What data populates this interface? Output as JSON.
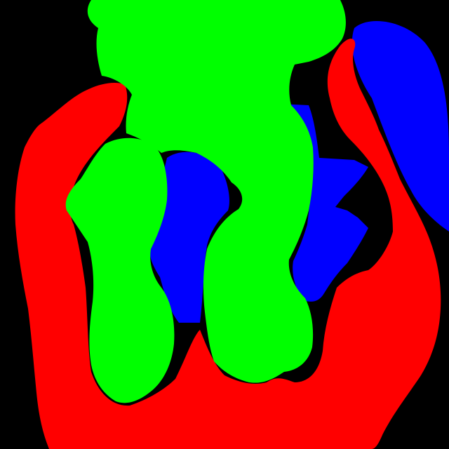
{
  "image": {
    "background_color": "#000000",
    "regions": [
      {
        "name": "red-region",
        "color": "#ff0000"
      },
      {
        "name": "green-region",
        "color": "#00ff00"
      },
      {
        "name": "blue-region",
        "color": "#0000ff"
      }
    ]
  }
}
